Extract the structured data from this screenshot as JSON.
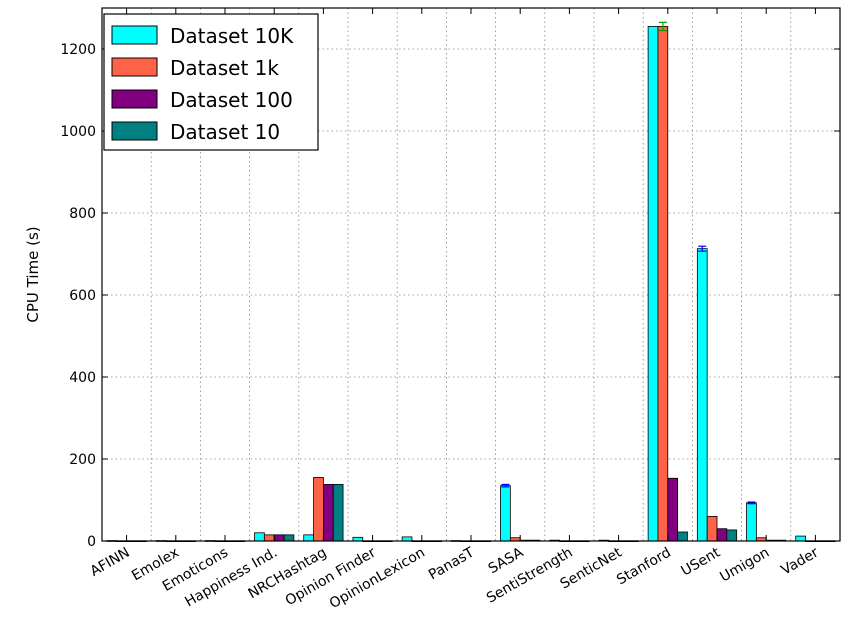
{
  "chart_data": {
    "type": "bar",
    "title": "",
    "xlabel": "",
    "ylabel": "CPU Time (s)",
    "ylim": [
      0,
      1300
    ],
    "yticks": [
      0,
      200,
      400,
      600,
      800,
      1000,
      1200
    ],
    "ytick_labels": [
      "0",
      "200",
      "400",
      "600",
      "800",
      "1000",
      "1200"
    ],
    "grid": true,
    "legend_placement": "top-left",
    "categories": [
      "AFINN",
      "Emolex",
      "Emoticons",
      "Happiness Ind.",
      "NRCHashtag",
      "Opinion Finder",
      "OpinionLexicon",
      "PanasT",
      "SASA",
      "SentiStrength",
      "SenticNet",
      "Stanford",
      "USent",
      "Umigon",
      "Vader"
    ],
    "series": [
      {
        "name": "Dataset 10K",
        "color": "#00ffff",
        "values": [
          1,
          1,
          1,
          20,
          15,
          9,
          10,
          1,
          135,
          2,
          2,
          1255,
          713,
          93,
          12
        ]
      },
      {
        "name": "Dataset 1k",
        "color": "#ff6347",
        "values": [
          0.5,
          0.5,
          0.5,
          15,
          155,
          0.5,
          0.5,
          0.5,
          8,
          0.5,
          0.5,
          1255,
          60,
          8,
          0.5
        ]
      },
      {
        "name": "Dataset 100",
        "color": "#800080",
        "values": [
          0.5,
          0.5,
          0.5,
          15,
          138,
          0.5,
          0.5,
          0.5,
          2,
          0.5,
          0.5,
          153,
          30,
          2,
          0.5
        ]
      },
      {
        "name": "Dataset 10",
        "color": "#008080",
        "values": [
          0.5,
          0.5,
          0.5,
          15,
          138,
          0.5,
          0.5,
          0.5,
          2,
          0.5,
          0.5,
          22,
          27,
          2,
          0.5
        ]
      }
    ],
    "error_bars": [
      {
        "category": "SASA",
        "series": "Dataset 10K",
        "value": 135,
        "err": 3
      },
      {
        "category": "Stanford",
        "series": "Dataset 1k",
        "value": 1255,
        "err": 10
      },
      {
        "category": "USent",
        "series": "Dataset 10K",
        "value": 713,
        "err": 6
      },
      {
        "category": "Umigon",
        "series": "Dataset 10K",
        "value": 93,
        "err": 2
      }
    ],
    "error_bar_colors": {
      "cyan_series": "#0000ff",
      "other_series": "#00a000"
    }
  }
}
